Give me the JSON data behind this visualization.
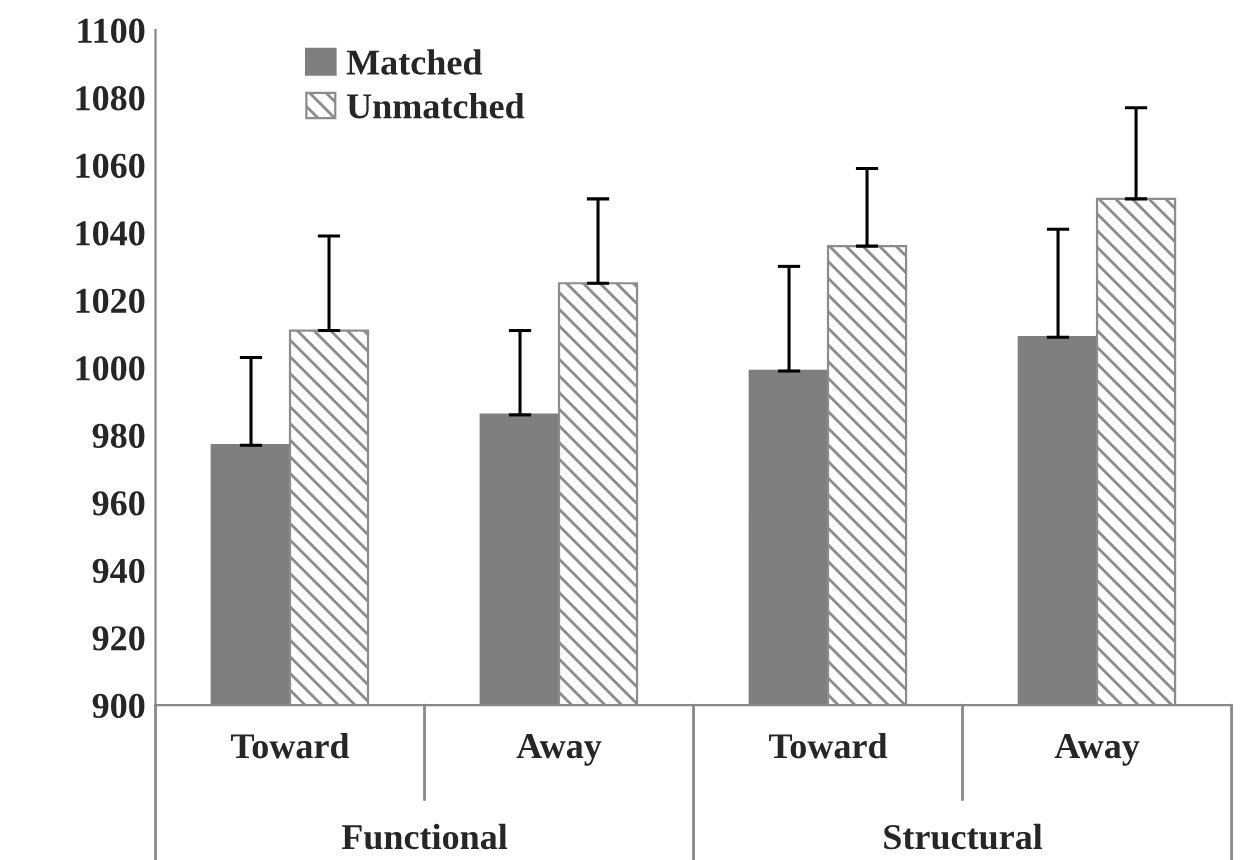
{
  "chart_data": {
    "type": "bar",
    "categories": [
      "Toward",
      "Away",
      "Toward",
      "Away"
    ],
    "series": [
      {
        "name": "Matched",
        "color": "#7f7f7f",
        "values": [
          977,
          986,
          999,
          1009
        ],
        "errors": [
          [
            977,
            1003
          ],
          [
            986,
            1011
          ],
          [
            999,
            1030
          ],
          [
            1009,
            1041
          ]
        ]
      },
      {
        "name": "Unmatched",
        "color": "#8c8c8c",
        "values": [
          1011,
          1025,
          1036,
          1050
        ],
        "errors": [
          [
            1011,
            1039
          ],
          [
            1025,
            1050
          ],
          [
            1036,
            1059
          ],
          [
            1050,
            1077
          ]
        ]
      }
    ],
    "annotations": [
      "Functional",
      "Structural"
    ],
    "ylim": [
      900,
      1100
    ],
    "yticks": [
      900,
      920,
      940,
      960,
      980,
      1000,
      1020,
      1040,
      1060,
      1080,
      1100
    ],
    "grid": false,
    "legend": "top left"
  }
}
